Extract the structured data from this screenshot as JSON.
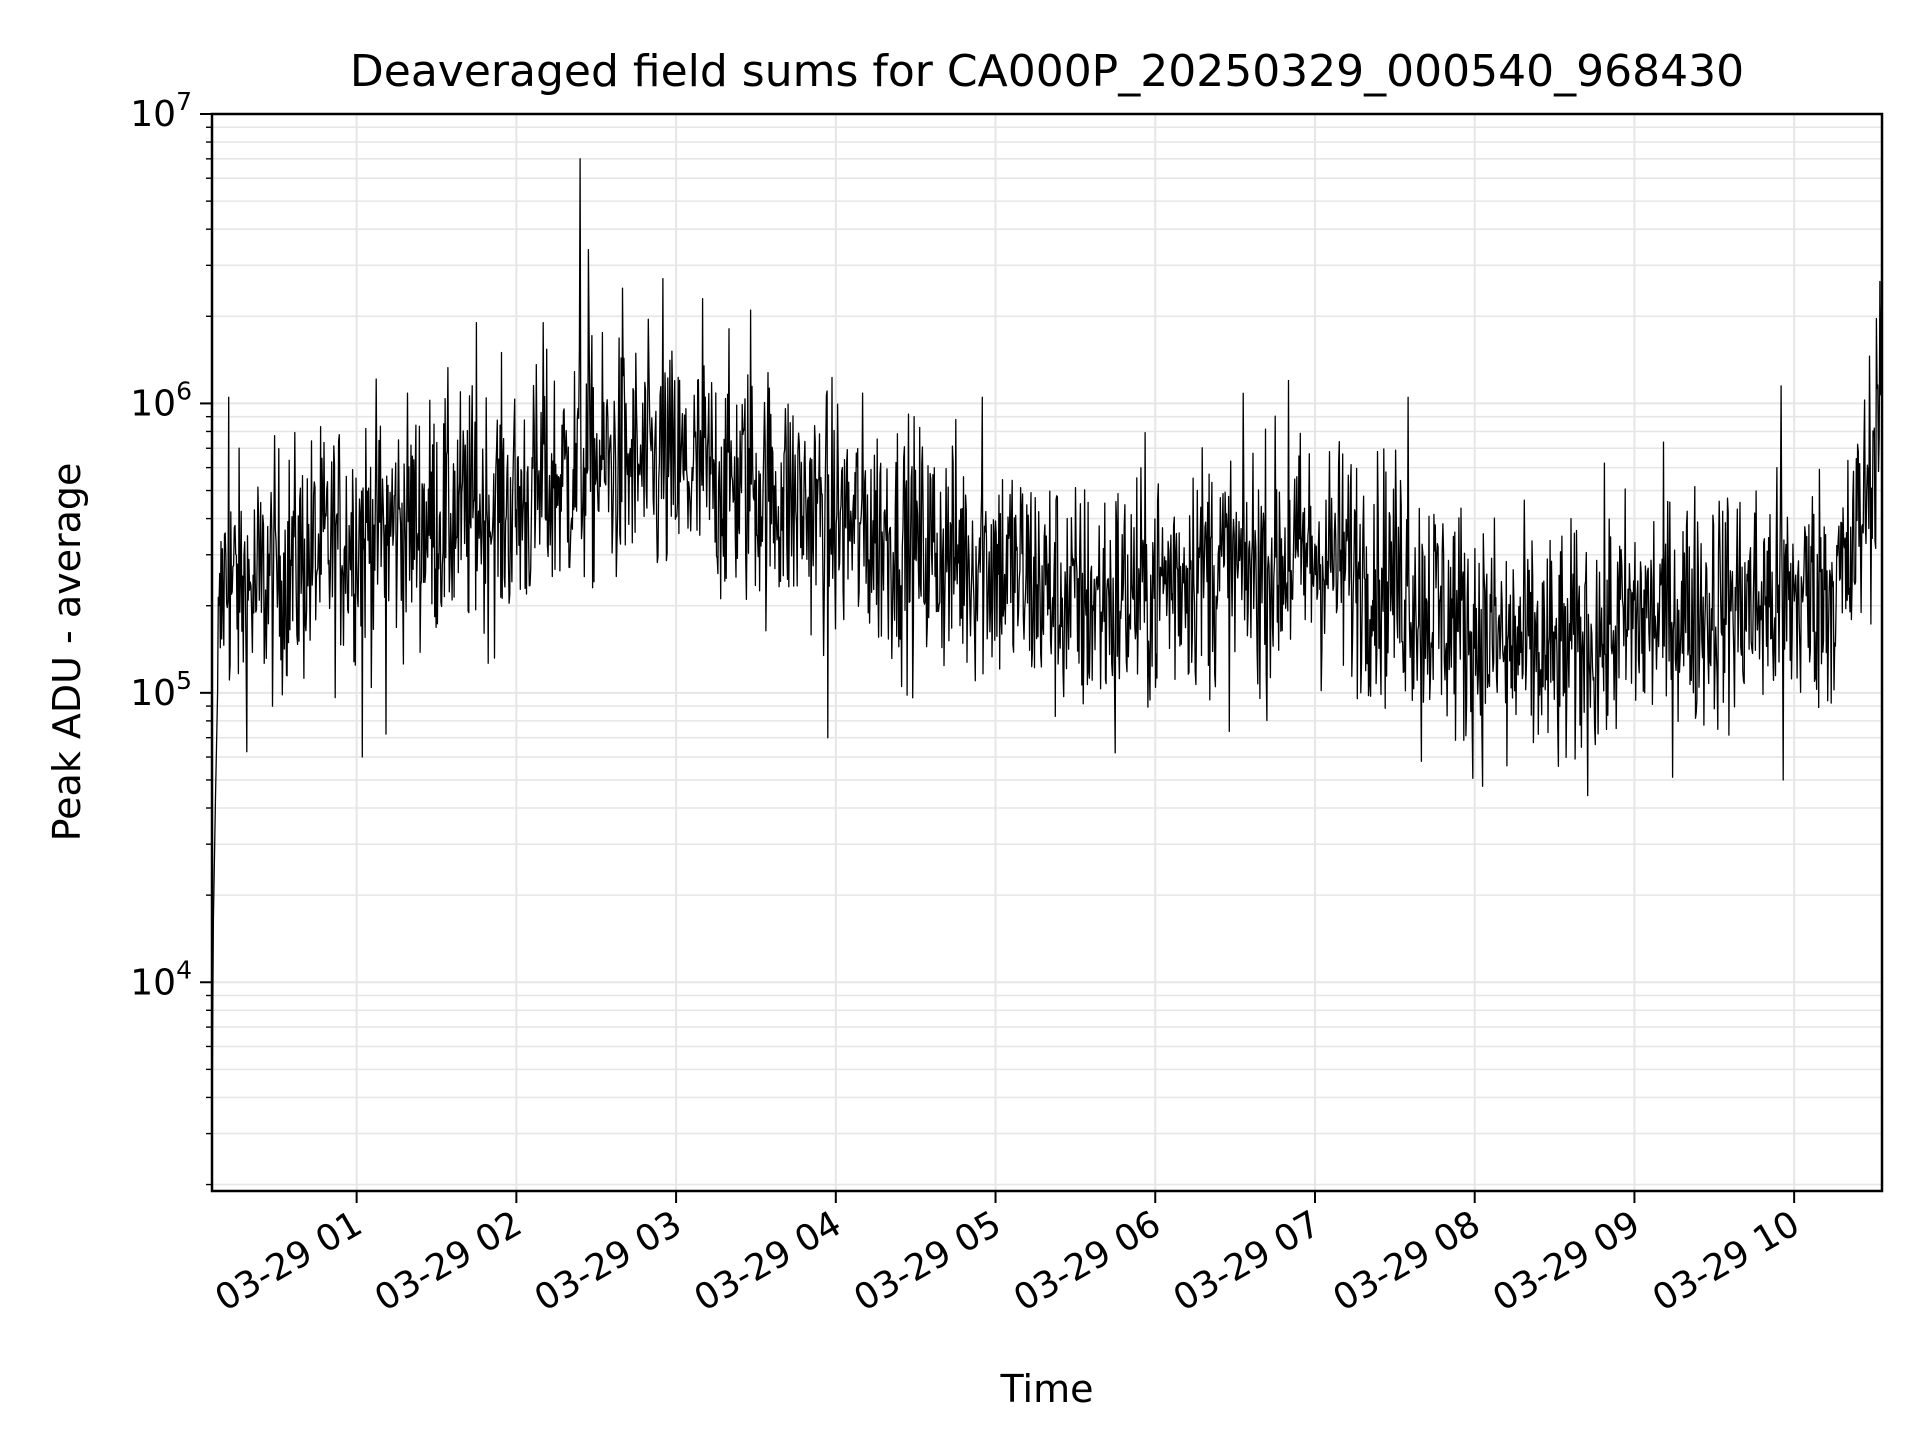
{
  "chart_data": {
    "type": "line",
    "title": "Deaveraged field sums for CA000P_20250329_000540_968430",
    "xlabel": "Time",
    "ylabel": "Peak ADU - average",
    "yscale": "log",
    "ylim": [
      1900,
      10000000
    ],
    "xlim": [
      "2025-03-29 00:05:40",
      "2025-03-29 10:33:00"
    ],
    "grid": true,
    "line_color": "#000000",
    "grid_color": "#e6e6e6",
    "x_ticks": [
      {
        "value": "2025-03-29 01:00",
        "label": "03-29 01"
      },
      {
        "value": "2025-03-29 02:00",
        "label": "03-29 02"
      },
      {
        "value": "2025-03-29 03:00",
        "label": "03-29 03"
      },
      {
        "value": "2025-03-29 04:00",
        "label": "03-29 04"
      },
      {
        "value": "2025-03-29 05:00",
        "label": "03-29 05"
      },
      {
        "value": "2025-03-29 06:00",
        "label": "03-29 06"
      },
      {
        "value": "2025-03-29 07:00",
        "label": "03-29 07"
      },
      {
        "value": "2025-03-29 08:00",
        "label": "03-29 08"
      },
      {
        "value": "2025-03-29 09:00",
        "label": "03-29 09"
      },
      {
        "value": "2025-03-29 10:00",
        "label": "03-29 10"
      }
    ],
    "y_ticks": [
      {
        "value": 10000,
        "base": "10",
        "exp": "4"
      },
      {
        "value": 100000,
        "base": "10",
        "exp": "5"
      },
      {
        "value": 1000000,
        "base": "10",
        "exp": "6"
      },
      {
        "value": 10000000,
        "base": "10",
        "exp": "7"
      }
    ],
    "series": [
      {
        "values": [
          {
            "x": "2025-03-29 00:05:40",
            "y": 3000
          },
          {
            "x": "2025-03-29 00:06:10",
            "y": 16000
          },
          {
            "x": "2025-03-29 00:07:00",
            "y": 45000
          },
          {
            "x": "2025-03-29 00:08:00",
            "y": 130000
          },
          {
            "x": "2025-03-29 00:10:00",
            "y": 250000
          },
          {
            "x": "2025-03-29 00:20:00",
            "y": 220000
          },
          {
            "x": "2025-03-29 00:30:00",
            "y": 260000
          },
          {
            "x": "2025-03-29 00:45:00",
            "y": 300000
          },
          {
            "x": "2025-03-29 01:00:00",
            "y": 360000
          },
          {
            "x": "2025-03-29 01:30:00",
            "y": 400000
          },
          {
            "x": "2025-03-29 02:00:00",
            "y": 440000
          },
          {
            "x": "2025-03-29 02:24:00",
            "y": 600000
          },
          {
            "x": "2025-03-29 02:30:00",
            "y": 620000
          },
          {
            "x": "2025-03-29 03:00:00",
            "y": 580000
          },
          {
            "x": "2025-03-29 03:30:00",
            "y": 520000
          },
          {
            "x": "2025-03-29 04:00:00",
            "y": 400000
          },
          {
            "x": "2025-03-29 04:30:00",
            "y": 320000
          },
          {
            "x": "2025-03-29 05:00:00",
            "y": 280000
          },
          {
            "x": "2025-03-29 05:30:00",
            "y": 200000
          },
          {
            "x": "2025-03-29 06:00:00",
            "y": 230000
          },
          {
            "x": "2025-03-29 06:15:00",
            "y": 280000
          },
          {
            "x": "2025-03-29 06:30:00",
            "y": 260000
          },
          {
            "x": "2025-03-29 07:00:00",
            "y": 300000
          },
          {
            "x": "2025-03-29 07:30:00",
            "y": 250000
          },
          {
            "x": "2025-03-29 08:00:00",
            "y": 160000
          },
          {
            "x": "2025-03-29 08:30:00",
            "y": 130000
          },
          {
            "x": "2025-03-29 09:00:00",
            "y": 180000
          },
          {
            "x": "2025-03-29 09:30:00",
            "y": 200000
          },
          {
            "x": "2025-03-29 10:00:00",
            "y": 210000
          },
          {
            "x": "2025-03-29 10:20:00",
            "y": 250000
          },
          {
            "x": "2025-03-29 10:30:00",
            "y": 650000
          },
          {
            "x": "2025-03-29 10:33:00",
            "y": 1900000
          }
        ],
        "spikes": [
          {
            "x": "2025-03-29 02:24:00",
            "y": 7000000
          },
          {
            "x": "2025-03-29 02:27:00",
            "y": 3400000
          },
          {
            "x": "2025-03-29 02:40:00",
            "y": 2500000
          },
          {
            "x": "2025-03-29 02:55:00",
            "y": 2700000
          },
          {
            "x": "2025-03-29 03:10:00",
            "y": 2300000
          },
          {
            "x": "2025-03-29 03:28:00",
            "y": 2100000
          },
          {
            "x": "2025-03-29 01:45:00",
            "y": 1900000
          },
          {
            "x": "2025-03-29 02:10:00",
            "y": 1900000
          },
          {
            "x": "2025-03-29 06:50:00",
            "y": 1200000
          },
          {
            "x": "2025-03-29 07:35:00",
            "y": 1050000
          },
          {
            "x": "2025-03-29 09:55:00",
            "y": 1150000
          },
          {
            "x": "2025-03-29 04:55:00",
            "y": 1050000
          },
          {
            "x": "2025-03-29 00:12:00",
            "y": 1050000
          }
        ],
        "dips": [
          {
            "x": "2025-03-29 01:02:00",
            "y": 60000
          },
          {
            "x": "2025-03-29 01:11:00",
            "y": 72000
          },
          {
            "x": "2025-03-29 03:57:00",
            "y": 70000
          },
          {
            "x": "2025-03-29 07:40:00",
            "y": 58000
          },
          {
            "x": "2025-03-29 08:12:00",
            "y": 56000
          },
          {
            "x": "2025-03-29 09:56:00",
            "y": 50000
          },
          {
            "x": "2025-03-29 05:45:00",
            "y": 62000
          }
        ]
      }
    ]
  }
}
